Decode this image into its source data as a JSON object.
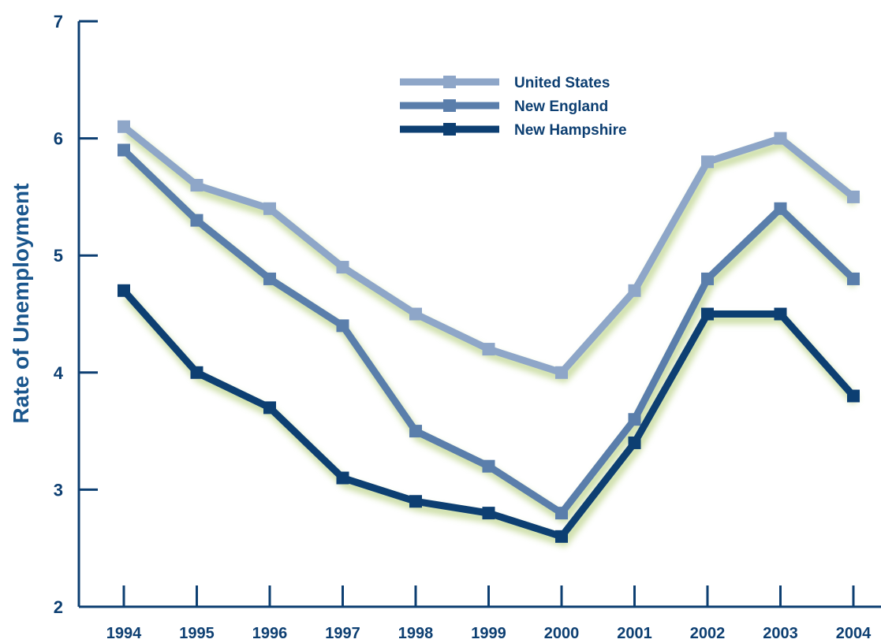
{
  "chart_data": {
    "type": "line",
    "title": "",
    "xlabel": "",
    "ylabel": "Rate of Unemployment",
    "x": [
      "1994",
      "1995",
      "1996",
      "1997",
      "1998",
      "1999",
      "2000",
      "2001",
      "2002",
      "2003",
      "2004"
    ],
    "ylim": [
      2,
      7
    ],
    "yticks": [
      "2",
      "3",
      "4",
      "5",
      "6",
      "7"
    ],
    "grid": false,
    "legend": "top-center",
    "series": [
      {
        "name": "United States",
        "color": "#8ea6c8",
        "values": [
          6.1,
          5.6,
          5.4,
          4.9,
          4.5,
          4.2,
          4.0,
          4.7,
          5.8,
          6.0,
          5.5
        ]
      },
      {
        "name": "New England",
        "color": "#5a7eab",
        "values": [
          5.9,
          5.3,
          4.8,
          4.4,
          3.5,
          3.2,
          2.8,
          3.6,
          4.8,
          5.4,
          4.8
        ]
      },
      {
        "name": "New Hampshire",
        "color": "#0d3f72",
        "values": [
          4.7,
          4.0,
          3.7,
          3.1,
          2.9,
          2.8,
          2.6,
          3.4,
          4.5,
          4.5,
          3.8
        ]
      }
    ],
    "glow_color": "#c9dca0",
    "axis_color": "#0d3f72"
  }
}
